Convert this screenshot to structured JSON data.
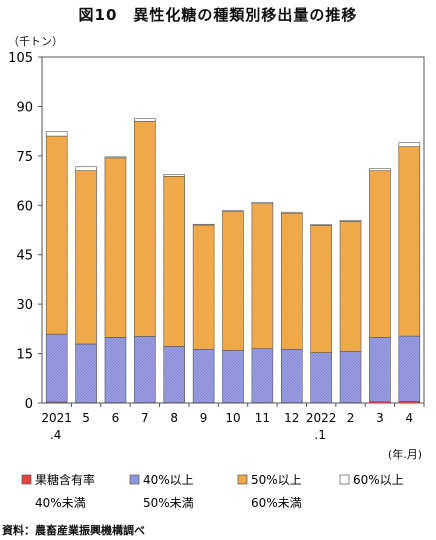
{
  "title": "図10　異性化糖の種類別移出量の推移",
  "unit_label": "（千トン）",
  "x_unit_label": "(年.月)",
  "source": "資料：農畜産業振興機構調べ",
  "chart_data": {
    "type": "bar",
    "stacked": true,
    "title": "図10　異性化糖の種類別移出量の推移",
    "ylabel": "（千トン）",
    "xlabel": "(年.月)",
    "ylim": [
      0,
      105
    ],
    "yticks": [
      0,
      15,
      30,
      45,
      60,
      75,
      90,
      105
    ],
    "grid": false,
    "legend_position": "bottom",
    "categories": [
      "2021.4",
      "5",
      "6",
      "7",
      "8",
      "9",
      "10",
      "11",
      "12",
      "2022.1",
      "2",
      "3",
      "4"
    ],
    "category_labels": [
      {
        "line1": "2021",
        "line2": ".4"
      },
      {
        "line1": "5",
        "line2": ""
      },
      {
        "line1": "6",
        "line2": ""
      },
      {
        "line1": "7",
        "line2": ""
      },
      {
        "line1": "8",
        "line2": ""
      },
      {
        "line1": "9",
        "line2": ""
      },
      {
        "line1": "10",
        "line2": ""
      },
      {
        "line1": "11",
        "line2": ""
      },
      {
        "line1": "12",
        "line2": ""
      },
      {
        "line1": "2022",
        "line2": ".1"
      },
      {
        "line1": "2",
        "line2": ""
      },
      {
        "line1": "3",
        "line2": ""
      },
      {
        "line1": "4",
        "line2": ""
      }
    ],
    "series": [
      {
        "name": "果糖含有率 40%未満",
        "legend_line1": "果糖含有率",
        "legend_line2": "40%未満",
        "color": "#e8433f",
        "values": [
          0.3,
          0.1,
          0.1,
          0.1,
          0.1,
          0.1,
          0.1,
          0.1,
          0.1,
          0.1,
          0.1,
          0.4,
          0.5
        ]
      },
      {
        "name": "40%以上 50%未満",
        "legend_line1": "40%以上",
        "legend_line2": "50%未満",
        "color": "#9a9ee0",
        "values": [
          20.6,
          17.8,
          19.8,
          20.1,
          17.1,
          16.2,
          15.9,
          16.4,
          16.2,
          15.2,
          15.6,
          19.5,
          19.8
        ]
      },
      {
        "name": "50%以上 60%未満",
        "legend_line1": "50%以上",
        "legend_line2": "60%未満",
        "color": "#f2ac4e",
        "values": [
          60.1,
          52.6,
          54.5,
          65.3,
          51.6,
          37.7,
          42.1,
          44.0,
          41.3,
          38.6,
          39.4,
          50.6,
          57.5
        ]
      },
      {
        "name": "60%以上",
        "legend_line1": "60%以上",
        "legend_line2": "",
        "color": "#ffffff",
        "values": [
          1.4,
          1.2,
          0.3,
          0.8,
          0.6,
          0.2,
          0.3,
          0.4,
          0.3,
          0.2,
          0.3,
          0.6,
          1.2
        ]
      }
    ]
  }
}
